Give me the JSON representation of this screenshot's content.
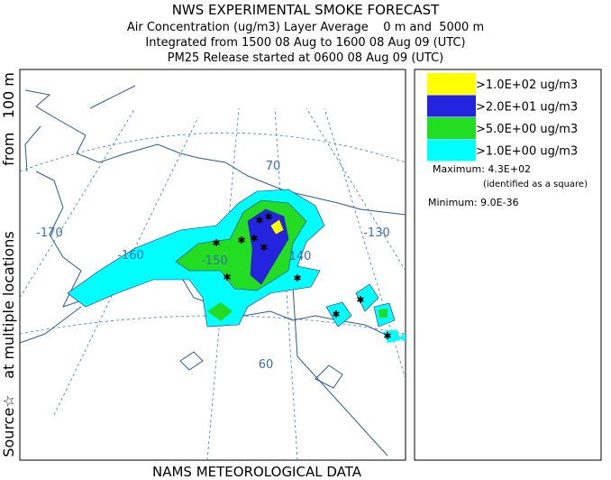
{
  "header": {
    "title": "NWS EXPERIMENTAL SMOKE FORECAST",
    "lines": [
      "Air Concentration (ug/m3) Layer Average    0 m and  5000 m",
      "Integrated from 1500 08 Aug to 1600 08 Aug 09 (UTC)",
      "PM25 Release started at 0600 08 Aug 09 (UTC)"
    ]
  },
  "side_label": [
    "Source☆",
    "at multiple locations",
    "from   100 m"
  ],
  "footer": "NAMS METEOROLOGICAL DATA",
  "legend": {
    "items": [
      {
        "label": ">1.0E+02 ug/m3",
        "color": "#ffff00"
      },
      {
        "label": ">2.0E+01 ug/m3",
        "color": "#2424e0"
      },
      {
        "label": ">5.0E+00 ug/m3",
        "color": "#22dd22"
      },
      {
        "label": ">1.0E+00 ug/m3",
        "color": "#00ffff"
      }
    ],
    "maximum": "Maximum: 4.3E+02",
    "maximum_note": "(identified as a square)",
    "minimum": "Minimum: 9.0E-36"
  },
  "map": {
    "labels": [
      "-170",
      "-160",
      "-150",
      "140",
      "-130",
      "70",
      "60"
    ]
  }
}
